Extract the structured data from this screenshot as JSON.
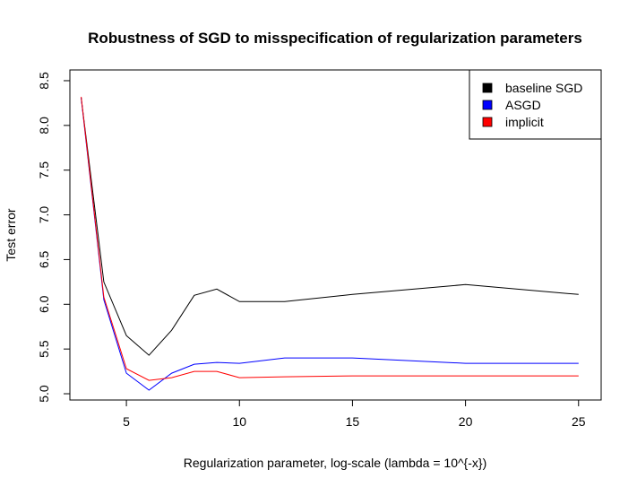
{
  "chart_data": {
    "type": "line",
    "title": "Robustness of SGD to misspecification of regularization parameters",
    "xlabel": "Regularization parameter, log-scale (lambda = 10^{-x})",
    "ylabel": "Test error",
    "xlim": [
      2.5,
      26.0
    ],
    "ylim": [
      4.93,
      8.62
    ],
    "xticks": [
      5,
      10,
      15,
      20,
      25
    ],
    "yticks": [
      5.0,
      5.5,
      6.0,
      6.5,
      7.0,
      7.5,
      8.0,
      8.5
    ],
    "ytick_labels": [
      "5.0",
      "5.5",
      "6.0",
      "6.5",
      "7.0",
      "7.5",
      "8.0",
      "8.5"
    ],
    "grid": false,
    "legend_position": "top-right",
    "x": [
      3,
      4,
      5,
      6,
      7,
      8,
      9,
      10,
      12,
      15,
      20,
      25
    ],
    "series": [
      {
        "name": "baseline SGD",
        "color": "#000000",
        "values": [
          8.31,
          6.25,
          5.65,
          5.43,
          5.71,
          6.1,
          6.17,
          6.03,
          6.03,
          6.11,
          6.22,
          6.11
        ]
      },
      {
        "name": "ASGD",
        "color": "#0000ff",
        "values": [
          8.31,
          6.05,
          5.23,
          5.04,
          5.23,
          5.33,
          5.35,
          5.34,
          5.4,
          5.4,
          5.34,
          5.34
        ]
      },
      {
        "name": "implicit",
        "color": "#ff0000",
        "values": [
          8.32,
          6.08,
          5.28,
          5.15,
          5.18,
          5.25,
          5.25,
          5.18,
          5.19,
          5.2,
          5.2,
          5.2
        ]
      }
    ]
  }
}
